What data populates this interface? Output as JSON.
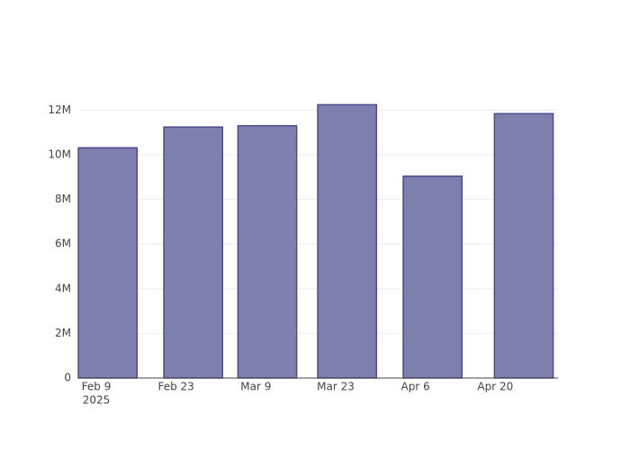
{
  "chart_data": {
    "type": "bar",
    "x": [
      "2025-02-11",
      "2025-02-26",
      "2025-03-11",
      "2025-03-25",
      "2025-04-09",
      "2025-04-25"
    ],
    "values": [
      10310000,
      11240000,
      11300000,
      12240000,
      9040000,
      11840000
    ],
    "color": "#7f7faf",
    "xlim": [
      "2025-02-06",
      "2025-05-01"
    ],
    "xticks": [
      {
        "value": "2025-02-09",
        "label": "Feb 9"
      },
      {
        "value": "2025-02-23",
        "label": "Feb 23"
      },
      {
        "value": "2025-03-09",
        "label": "Mar 9"
      },
      {
        "value": "2025-03-23",
        "label": "Mar 23"
      },
      {
        "value": "2025-04-06",
        "label": "Apr 6"
      },
      {
        "value": "2025-04-20",
        "label": "Apr 20"
      }
    ],
    "x_year_label": "2025",
    "ylim": [
      0,
      12900000
    ],
    "yticks": [
      0,
      {
        "value": 2000000,
        "label": "2M"
      },
      {
        "value": 4000000,
        "label": "4M"
      },
      {
        "value": 6000000,
        "label": "6M"
      },
      {
        "value": 8000000,
        "label": "8M"
      },
      {
        "value": 10000000,
        "label": "10M"
      },
      {
        "value": 12000000,
        "label": "12M"
      }
    ],
    "grid": true
  }
}
